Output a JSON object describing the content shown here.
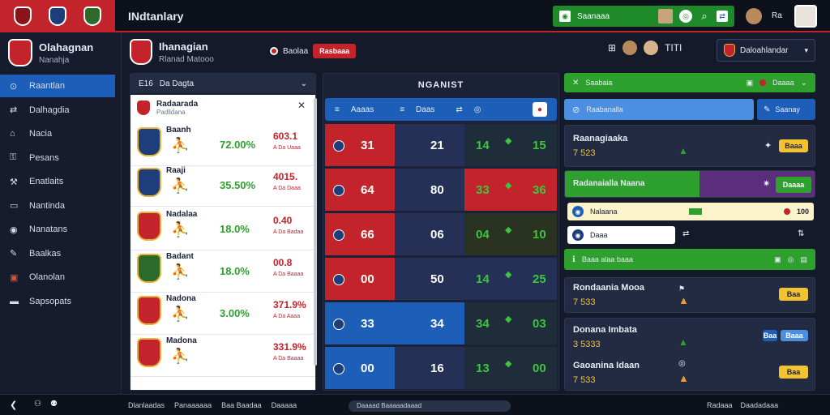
{
  "header": {
    "app_title": "INdtanlary",
    "search_label": "Saanaaa",
    "user_label": "Ra",
    "colors": {
      "accent": "#c3232a",
      "green": "#2ea02e",
      "blue": "#1d5fb8"
    }
  },
  "profile": {
    "name": "Olahagnan",
    "sub": "Nanahja"
  },
  "sidebar": {
    "items": [
      {
        "label": "Raantlan",
        "icon": "gauge-icon"
      },
      {
        "label": "Dalhagdia",
        "icon": "share-icon"
      },
      {
        "label": "Nacia",
        "icon": "home-icon"
      },
      {
        "label": "Pesans",
        "icon": "lock-icon"
      },
      {
        "label": "Enatlaits",
        "icon": "tool-icon"
      },
      {
        "label": "Nantinda",
        "icon": "inbox-icon"
      },
      {
        "label": "Nanatans",
        "icon": "globe-icon"
      },
      {
        "label": "Baalkas",
        "icon": "pen-icon"
      },
      {
        "label": "Olanolan",
        "icon": "box-icon"
      },
      {
        "label": "Sapsopats",
        "icon": "card-icon"
      }
    ]
  },
  "team_header": {
    "name": "Ihanagian",
    "sub": "Rlanad Matooo",
    "badge_label": "Baolaa",
    "badge_value": "Rasbaaa"
  },
  "toolbar_right": {
    "label": "Daloahlandar",
    "text": "TITI"
  },
  "left_panel": {
    "title": "Da Dagta",
    "prefix": "E16",
    "card_title": "Radaarada",
    "card_sub": "Padlldana",
    "rows": [
      {
        "name": "Baanh",
        "pct": "72.00%",
        "val": "603.1",
        "sub": "A Da Uaaa"
      },
      {
        "name": "Raaji",
        "pct": "35.50%",
        "val": "4015.",
        "sub": "A Da Daaa"
      },
      {
        "name": "Nadalaa",
        "pct": "18.0%",
        "val": "0.40",
        "sub": "A Da Badaa"
      },
      {
        "name": "Badant",
        "pct": "18.0%",
        "val": "00.8",
        "sub": "A Da Baaaa"
      },
      {
        "name": "Nadona",
        "pct": "3.00%",
        "val": "371.9%",
        "sub": "A Da Aaaa"
      },
      {
        "name": "Madona",
        "pct": "",
        "val": "331.9%",
        "sub": "A Da Baaaa"
      }
    ]
  },
  "match_panel": {
    "title": "NGANIST",
    "tabs": [
      "Aaaas",
      "Daas"
    ],
    "rows": [
      {
        "a": "31",
        "b": "21",
        "c": "14",
        "d": "15"
      },
      {
        "a": "64",
        "b": "80",
        "c": "33",
        "d": "36"
      },
      {
        "a": "66",
        "b": "06",
        "c": "04",
        "d": "10"
      },
      {
        "a": "00",
        "b": "50",
        "c": "14",
        "d": "25"
      },
      {
        "a": "33",
        "b": "34",
        "c": "34",
        "d": "03"
      },
      {
        "a": "00",
        "b": "16",
        "c": "13",
        "d": "00"
      }
    ]
  },
  "right_panel": {
    "green_label": "Saabaia",
    "green_tag": "Daaaa",
    "blue_label": "Raabanalla",
    "blue_btn": "Saanay",
    "card1": {
      "title": "Raanagiaaka",
      "val": "7 523",
      "btn": "Baaa"
    },
    "card2": {
      "title": "Radanaialla Naana",
      "btn": "Daaaa"
    },
    "strip1": {
      "label": "Nalaana",
      "val": "100"
    },
    "strip2": {
      "label": "Daaa"
    },
    "strip3": {
      "label": "Baaa alaa baaa"
    },
    "card3": {
      "title": "Rondaania Mooa",
      "val": "7 533",
      "btn": "Baa"
    },
    "card4": {
      "title": "Donana Imbata",
      "val": "3 5333",
      "btn": "Baaa",
      "tag": "Baa"
    },
    "card5": {
      "title": "Gaoanina Idaan",
      "val": "7 533",
      "btn": "Baa"
    }
  },
  "footer": {
    "items": [
      "Dlanlaadas",
      "Panaaaaaa",
      "Baa Baadaa",
      "Daaaaa"
    ],
    "center": "Daaaad Baaaaadaaad",
    "right1": "Radaaa",
    "right2": "Daadadaaa"
  }
}
